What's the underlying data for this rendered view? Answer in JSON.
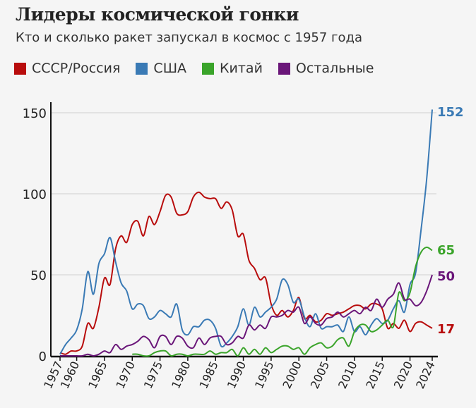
{
  "chart_data": {
    "type": "line",
    "title": "Лидеры космической гонки",
    "subtitle": "Кто и сколько ракет запускал в космос с 1957 года",
    "xlabel": "",
    "ylabel": "",
    "xlim": [
      1957,
      2024
    ],
    "ylim": [
      0,
      150
    ],
    "grid": true,
    "legend": "top",
    "y_ticks": [
      "0",
      "50",
      "100",
      "150"
    ],
    "y_tick_values": [
      0,
      50,
      100,
      150
    ],
    "x_ticks": [
      "1957",
      "1960",
      "1965",
      "1970",
      "1975",
      "1980",
      "1985",
      "1990",
      "1995",
      "2000",
      "2005",
      "2010",
      "2015",
      "2020",
      "2024"
    ],
    "x_tick_values": [
      1957,
      1960,
      1965,
      1970,
      1975,
      1980,
      1985,
      1990,
      1995,
      2000,
      2005,
      2010,
      2015,
      2020,
      2024
    ],
    "x_start": 1957,
    "series": [
      {
        "name": "СССР/Россия",
        "color": "#b80c0c",
        "end_label": "17",
        "values": [
          2,
          1,
          3,
          3,
          6,
          20,
          17,
          30,
          48,
          44,
          66,
          74,
          70,
          81,
          83,
          74,
          86,
          81,
          89,
          99,
          98,
          88,
          87,
          89,
          98,
          101,
          98,
          97,
          97,
          91,
          95,
          90,
          74,
          75,
          59,
          54,
          47,
          48,
          32,
          25,
          28,
          24,
          28,
          36,
          23,
          25,
          21,
          22,
          26,
          25,
          26,
          27,
          29,
          31,
          31,
          29,
          32,
          32,
          29,
          17,
          20,
          17,
          22,
          15,
          20,
          21,
          19,
          17
        ]
      },
      {
        "name": "США",
        "color": "#3a7ab5",
        "end_label": "152",
        "values": [
          1,
          7,
          11,
          16,
          29,
          52,
          38,
          57,
          63,
          73,
          58,
          45,
          40,
          29,
          32,
          31,
          23,
          24,
          28,
          26,
          24,
          32,
          16,
          13,
          18,
          18,
          22,
          22,
          17,
          6,
          8,
          12,
          18,
          29,
          19,
          30,
          24,
          27,
          30,
          35,
          47,
          44,
          33,
          35,
          24,
          18,
          26,
          17,
          18,
          18,
          19,
          15,
          24,
          15,
          18,
          13,
          19,
          23,
          20,
          22,
          29,
          34,
          27,
          44,
          51,
          78,
          109,
          152
        ]
      },
      {
        "name": "Китай",
        "color": "#3aa42a",
        "end_label": "65",
        "values": [
          null,
          null,
          null,
          null,
          null,
          null,
          null,
          null,
          null,
          null,
          null,
          null,
          null,
          1,
          1,
          0,
          0,
          2,
          3,
          3,
          0,
          1,
          1,
          0,
          1,
          1,
          1,
          3,
          1,
          2,
          2,
          4,
          0,
          5,
          1,
          4,
          1,
          5,
          2,
          4,
          6,
          6,
          4,
          5,
          1,
          5,
          7,
          8,
          5,
          6,
          10,
          11,
          6,
          15,
          19,
          19,
          15,
          16,
          19,
          22,
          18,
          39,
          34,
          39,
          55,
          64,
          67,
          65
        ]
      },
      {
        "name": "Остальные",
        "color": "#6a1679",
        "end_label": "50",
        "values": [
          0,
          0,
          0,
          0,
          0,
          1,
          0,
          1,
          3,
          2,
          7,
          4,
          6,
          7,
          9,
          12,
          10,
          5,
          12,
          12,
          7,
          12,
          11,
          6,
          5,
          11,
          7,
          11,
          12,
          12,
          7,
          8,
          12,
          11,
          19,
          16,
          19,
          17,
          24,
          24,
          25,
          28,
          27,
          30,
          20,
          24,
          20,
          19,
          23,
          24,
          27,
          24,
          26,
          28,
          26,
          30,
          28,
          35,
          30,
          35,
          38,
          45,
          35,
          35,
          31,
          33,
          40,
          50
        ]
      }
    ]
  }
}
